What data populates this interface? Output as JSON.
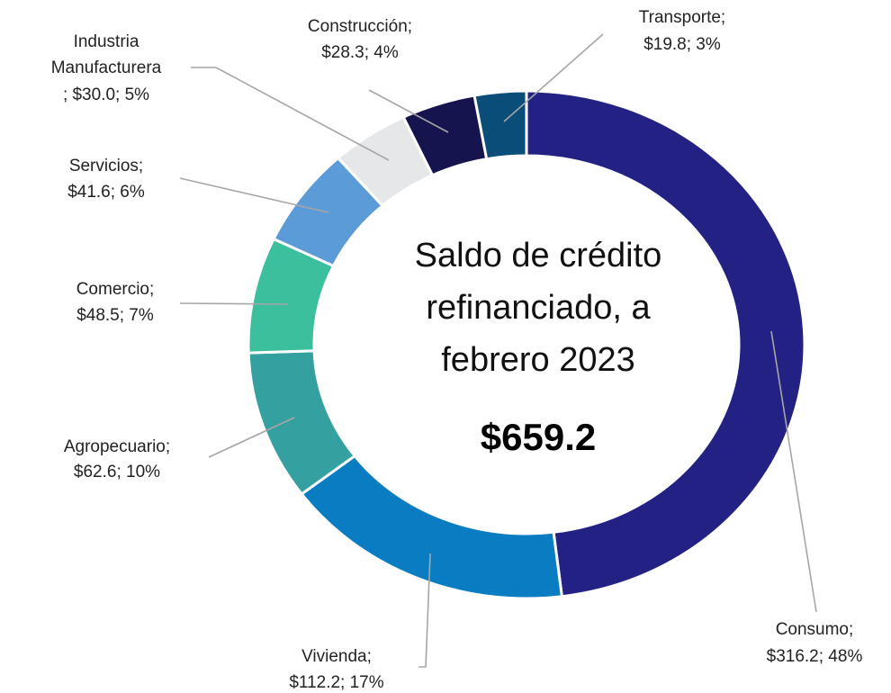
{
  "chart_data": {
    "type": "donut",
    "center_title": [
      "Saldo de crédito",
      "refinanciado, a",
      "febrero 2023"
    ],
    "center_value": "$659.2",
    "categories": [
      "Consumo;",
      "Vivienda;",
      "Agropecuario;",
      "Comercio;",
      "Servicios;",
      "Industria Manufacturera",
      "Construcción;",
      "Transporte;"
    ],
    "values": [
      316.2,
      112.2,
      62.6,
      48.5,
      41.6,
      30.0,
      28.3,
      19.8
    ],
    "value_labels": [
      "$316.2; 48%",
      "$112.2; 17%",
      "$62.6; 10%",
      "$48.5; 7%",
      "$41.6; 6%",
      "; $30.0; 5%",
      "$28.3; 4%",
      "$19.8; 3%"
    ],
    "colors": [
      "#232183",
      "#0a7cc2",
      "#35a0a0",
      "#3bbf9d",
      "#5b9bd8",
      "#e6e7e9",
      "#16144e",
      "#0a4d78"
    ]
  }
}
